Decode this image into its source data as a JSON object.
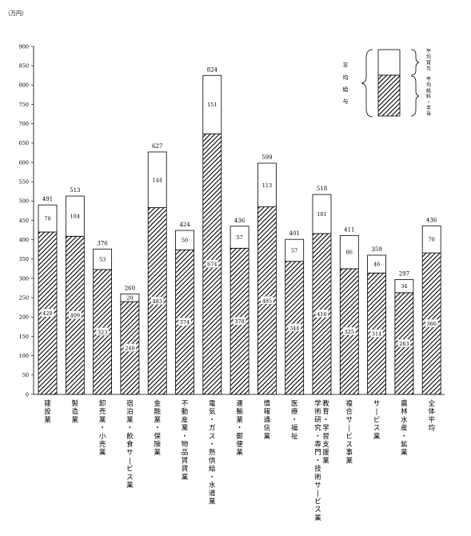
{
  "chart_data": {
    "type": "bar",
    "stacked": true,
    "unit_label": "（万円）",
    "ylim": [
      0,
      900
    ],
    "yticks": [
      0,
      50,
      100,
      150,
      200,
      250,
      300,
      350,
      400,
      450,
      500,
      550,
      600,
      650,
      700,
      750,
      800,
      850,
      900
    ],
    "grid": false,
    "categories": [
      "建設業",
      "製造業",
      "卸売業・小売業",
      "宿泊業・飲食サービス業",
      "金融業・保険業",
      "不動産業・物品賃貸業",
      "電気・ガス・熱供給・水道業",
      "運輸業・郵便業",
      "情報通信業",
      "医療・福祉",
      "学術研究・専門・技術サービス業 教育・学習支援業",
      "複合サービス事業",
      "サービス業",
      "農林水産・鉱業",
      "全体平均"
    ],
    "category_columns": [
      [
        "建設業"
      ],
      [
        "製造業"
      ],
      [
        "卸売業・小売業"
      ],
      [
        "宿泊業・飲食サービス業"
      ],
      [
        "金融業・保険業"
      ],
      [
        "不動産業・物品賃貸業"
      ],
      [
        "電気・ガス・熱供給・水道業"
      ],
      [
        "運輸業・郵便業"
      ],
      [
        "情報通信業"
      ],
      [
        "医療・福祉"
      ],
      [
        "学術研究・専門・技術サービス業",
        "教育・学習支援業"
      ],
      [
        "複合サービス事業"
      ],
      [
        "サービス業"
      ],
      [
        "農林水産・鉱業"
      ],
      [
        "全体平均"
      ]
    ],
    "series": [
      {
        "name": "平均給料・手当",
        "values": [
          420,
          409,
          323,
          240,
          483,
          374,
          674,
          378,
          485,
          344,
          416,
          325,
          314,
          263,
          366
        ]
      },
      {
        "name": "平均賞与",
        "values": [
          70,
          104,
          53,
          20,
          144,
          50,
          151,
          57,
          113,
          57,
          101,
          86,
          46,
          34,
          70
        ]
      }
    ],
    "totals": [
      491,
      513,
      376,
      260,
      627,
      424,
      824,
      436,
      599,
      401,
      518,
      411,
      359,
      297,
      436
    ],
    "legend": {
      "position": "top-right",
      "brace_label": "平均給与",
      "top_label": "平均賞与",
      "bottom_label": "平均給料・手当"
    }
  }
}
